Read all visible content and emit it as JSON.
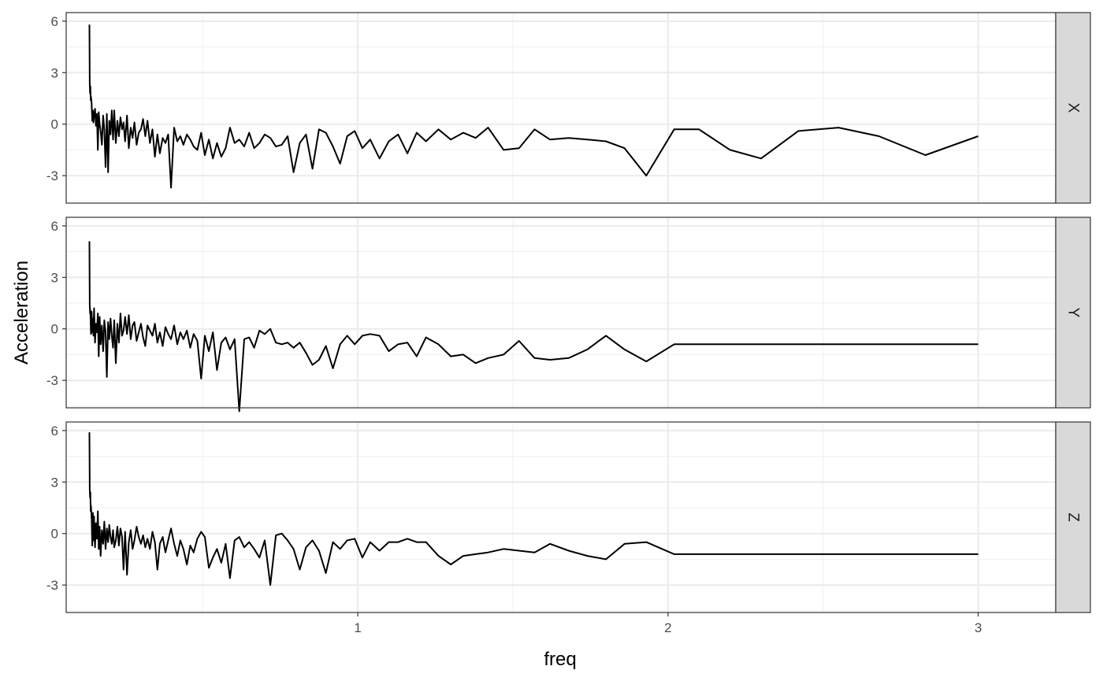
{
  "chart_data": {
    "type": "line",
    "layout": "faceted-rows",
    "xlabel": "freq",
    "ylabel": "Acceleration",
    "xlim": [
      0.06,
      3.25
    ],
    "ylim": [
      -4.6,
      6.5
    ],
    "x_ticks": [
      1,
      2,
      3
    ],
    "x_tick_labels": [
      "1",
      "2",
      "3"
    ],
    "y_ticks": [
      -3,
      0,
      3,
      6
    ],
    "y_tick_labels": [
      "-3",
      "0",
      "3",
      "6"
    ],
    "grid": true,
    "theme": "bw",
    "line_color": "#000000",
    "strip_color": "#d9d9d9",
    "panels": [
      {
        "strip": "X",
        "x": [
          0.135,
          0.136,
          0.137,
          0.138,
          0.139,
          0.14,
          0.142,
          0.144,
          0.146,
          0.148,
          0.15,
          0.153,
          0.156,
          0.159,
          0.162,
          0.165,
          0.168,
          0.171,
          0.175,
          0.179,
          0.183,
          0.187,
          0.191,
          0.195,
          0.199,
          0.203,
          0.207,
          0.211,
          0.215,
          0.22,
          0.225,
          0.23,
          0.235,
          0.24,
          0.245,
          0.25,
          0.256,
          0.262,
          0.268,
          0.274,
          0.28,
          0.287,
          0.294,
          0.301,
          0.308,
          0.315,
          0.322,
          0.33,
          0.338,
          0.346,
          0.354,
          0.362,
          0.371,
          0.38,
          0.389,
          0.398,
          0.408,
          0.418,
          0.428,
          0.438,
          0.449,
          0.46,
          0.471,
          0.483,
          0.495,
          0.507,
          0.52,
          0.533,
          0.546,
          0.56,
          0.574,
          0.588,
          0.603,
          0.618,
          0.634,
          0.65,
          0.666,
          0.683,
          0.7,
          0.718,
          0.736,
          0.755,
          0.774,
          0.793,
          0.813,
          0.833,
          0.854,
          0.875,
          0.897,
          0.92,
          0.943,
          0.966,
          0.99,
          1.015,
          1.04,
          1.07,
          1.1,
          1.13,
          1.16,
          1.19,
          1.22,
          1.26,
          1.3,
          1.34,
          1.38,
          1.42,
          1.47,
          1.52,
          1.57,
          1.62,
          1.68,
          1.74,
          1.8,
          1.86,
          1.93,
          2.02,
          2.1,
          2.2,
          2.3,
          2.42,
          2.55,
          2.68,
          2.83,
          3.0
        ],
        "y": [
          5.8,
          2.4,
          1.8,
          2.2,
          1.4,
          1.6,
          1.2,
          0.2,
          0.8,
          0.1,
          0.5,
          0.9,
          -0.1,
          0.6,
          -1.5,
          0.7,
          0.0,
          -0.4,
          -1.2,
          0.5,
          -0.3,
          -2.5,
          0.6,
          -2.8,
          0.2,
          -0.6,
          0.8,
          -0.9,
          0.8,
          -1.1,
          0.2,
          -0.7,
          0.4,
          -0.3,
          0.1,
          -1.0,
          0.5,
          -1.4,
          -0.2,
          -0.8,
          0.1,
          -1.2,
          -0.5,
          -0.3,
          0.3,
          -0.7,
          0.2,
          -1.1,
          -0.3,
          -1.9,
          -0.6,
          -1.7,
          -0.8,
          -1.1,
          -0.6,
          -3.7,
          -0.2,
          -1.0,
          -0.7,
          -1.2,
          -0.6,
          -0.9,
          -1.3,
          -1.5,
          -0.5,
          -1.8,
          -0.9,
          -2.0,
          -1.1,
          -1.9,
          -1.4,
          -0.2,
          -1.1,
          -0.9,
          -1.3,
          -0.5,
          -1.4,
          -1.1,
          -0.6,
          -0.8,
          -1.3,
          -1.2,
          -0.7,
          -2.8,
          -1.1,
          -0.6,
          -2.6,
          -0.3,
          -0.5,
          -1.3,
          -2.3,
          -0.7,
          -0.4,
          -1.4,
          -0.9,
          -2.0,
          -1.0,
          -0.6,
          -1.7,
          -0.5,
          -1.0,
          -0.3,
          -0.9,
          -0.5,
          -0.8,
          -0.2,
          -1.5,
          -1.4,
          -0.3,
          -0.9,
          -0.8,
          -0.9,
          -1.0,
          -1.4,
          -3.0,
          -0.3,
          -0.3,
          -1.5,
          -2.0,
          -0.4,
          -0.2,
          -0.7,
          -1.8,
          -0.7
        ]
      },
      {
        "strip": "Y",
        "x": [
          0.135,
          0.136,
          0.137,
          0.138,
          0.139,
          0.14,
          0.142,
          0.144,
          0.146,
          0.148,
          0.15,
          0.153,
          0.156,
          0.159,
          0.162,
          0.165,
          0.168,
          0.171,
          0.175,
          0.179,
          0.183,
          0.187,
          0.191,
          0.195,
          0.199,
          0.203,
          0.207,
          0.211,
          0.215,
          0.22,
          0.225,
          0.23,
          0.235,
          0.24,
          0.245,
          0.25,
          0.256,
          0.262,
          0.268,
          0.274,
          0.28,
          0.287,
          0.294,
          0.301,
          0.308,
          0.315,
          0.322,
          0.33,
          0.338,
          0.346,
          0.354,
          0.362,
          0.371,
          0.38,
          0.389,
          0.398,
          0.408,
          0.418,
          0.428,
          0.438,
          0.449,
          0.46,
          0.471,
          0.483,
          0.495,
          0.507,
          0.52,
          0.533,
          0.546,
          0.56,
          0.574,
          0.588,
          0.603,
          0.618,
          0.634,
          0.65,
          0.666,
          0.683,
          0.7,
          0.718,
          0.736,
          0.755,
          0.774,
          0.793,
          0.813,
          0.833,
          0.854,
          0.875,
          0.897,
          0.92,
          0.943,
          0.966,
          0.99,
          1.015,
          1.04,
          1.07,
          1.1,
          1.13,
          1.16,
          1.19,
          1.22,
          1.26,
          1.3,
          1.34,
          1.38,
          1.42,
          1.47,
          1.52,
          1.57,
          1.62,
          1.68,
          1.74,
          1.8,
          1.86,
          1.93,
          2.02,
          2.1,
          2.2,
          2.3,
          2.42,
          2.55,
          2.68,
          2.83,
          3.0
        ],
        "y": [
          5.1,
          1.4,
          0.9,
          1.1,
          0.3,
          -0.3,
          1.0,
          -0.2,
          0.6,
          -0.4,
          1.2,
          -0.8,
          0.3,
          -0.2,
          0.9,
          -1.6,
          0.7,
          -0.9,
          0.2,
          -1.3,
          0.5,
          -0.2,
          -2.8,
          0.4,
          -0.6,
          0.6,
          -0.4,
          -1.1,
          0.5,
          -2.0,
          0.3,
          -0.8,
          0.9,
          -0.4,
          -0.1,
          0.7,
          -0.3,
          0.8,
          -0.6,
          0.2,
          0.4,
          -0.7,
          -0.2,
          0.3,
          -0.5,
          -1.0,
          0.2,
          -0.1,
          -0.4,
          0.3,
          -0.8,
          -0.2,
          -1.0,
          0.1,
          -0.3,
          -0.6,
          0.2,
          -0.9,
          -0.2,
          -0.6,
          -0.1,
          -1.1,
          -0.3,
          -0.7,
          -2.9,
          -0.4,
          -1.3,
          -0.2,
          -2.4,
          -0.8,
          -0.5,
          -1.2,
          -0.6,
          -4.8,
          -0.6,
          -0.5,
          -1.1,
          -0.1,
          -0.3,
          0.0,
          -0.8,
          -0.9,
          -0.8,
          -1.1,
          -0.8,
          -1.4,
          -2.1,
          -1.8,
          -1.0,
          -2.3,
          -0.9,
          -0.4,
          -0.9,
          -0.4,
          -0.3,
          -0.4,
          -1.3,
          -0.9,
          -0.8,
          -1.6,
          -0.5,
          -0.9,
          -1.6,
          -1.5,
          -2.0,
          -1.7,
          -1.5,
          -0.7,
          -1.7,
          -1.8,
          -1.7,
          -1.2,
          -0.4,
          -1.2,
          -1.9,
          -0.9,
          -0.9,
          -0.9,
          -0.9,
          -0.9,
          -0.9,
          -0.9,
          -0.9,
          -0.9
        ]
      },
      {
        "strip": "Z",
        "x": [
          0.135,
          0.136,
          0.137,
          0.138,
          0.139,
          0.14,
          0.142,
          0.144,
          0.146,
          0.148,
          0.15,
          0.153,
          0.156,
          0.159,
          0.162,
          0.165,
          0.168,
          0.171,
          0.175,
          0.179,
          0.183,
          0.187,
          0.191,
          0.195,
          0.199,
          0.203,
          0.207,
          0.211,
          0.215,
          0.22,
          0.225,
          0.23,
          0.235,
          0.24,
          0.245,
          0.25,
          0.256,
          0.262,
          0.268,
          0.274,
          0.28,
          0.287,
          0.294,
          0.301,
          0.308,
          0.315,
          0.322,
          0.33,
          0.338,
          0.346,
          0.354,
          0.362,
          0.371,
          0.38,
          0.389,
          0.398,
          0.408,
          0.418,
          0.428,
          0.438,
          0.449,
          0.46,
          0.471,
          0.483,
          0.495,
          0.507,
          0.52,
          0.533,
          0.546,
          0.56,
          0.574,
          0.588,
          0.603,
          0.618,
          0.634,
          0.65,
          0.666,
          0.683,
          0.7,
          0.718,
          0.736,
          0.755,
          0.774,
          0.793,
          0.813,
          0.833,
          0.854,
          0.875,
          0.897,
          0.92,
          0.943,
          0.966,
          0.99,
          1.015,
          1.04,
          1.07,
          1.1,
          1.13,
          1.16,
          1.19,
          1.22,
          1.26,
          1.3,
          1.34,
          1.38,
          1.42,
          1.47,
          1.52,
          1.57,
          1.62,
          1.68,
          1.74,
          1.8,
          1.86,
          1.93,
          2.02,
          2.1,
          2.2,
          2.3,
          2.42,
          2.55,
          2.68,
          2.83,
          3.0
        ],
        "y": [
          5.9,
          2.6,
          2.1,
          2.4,
          1.3,
          1.6,
          0.9,
          -0.7,
          1.2,
          -0.4,
          1.0,
          -0.8,
          0.6,
          -0.3,
          1.3,
          -0.9,
          0.4,
          -1.3,
          0.2,
          -0.6,
          0.7,
          -0.9,
          0.3,
          -0.5,
          0.5,
          -0.2,
          -0.6,
          0.2,
          -0.8,
          -0.4,
          0.4,
          -0.7,
          0.3,
          -0.2,
          -2.1,
          0.1,
          -2.4,
          -0.5,
          0.2,
          -0.9,
          -0.4,
          0.4,
          -0.2,
          -0.6,
          -0.1,
          -0.8,
          -0.3,
          -0.9,
          0.1,
          -0.5,
          -2.1,
          -0.6,
          -0.2,
          -1.1,
          -0.4,
          0.3,
          -0.6,
          -1.3,
          -0.4,
          -0.9,
          -1.8,
          -0.7,
          -1.1,
          -0.3,
          0.1,
          -0.2,
          -2.0,
          -1.4,
          -0.9,
          -1.7,
          -0.6,
          -2.6,
          -0.4,
          -0.2,
          -0.8,
          -0.5,
          -0.9,
          -1.4,
          -0.4,
          -3.0,
          -0.1,
          0.0,
          -0.4,
          -0.9,
          -2.1,
          -0.8,
          -0.4,
          -1.0,
          -2.3,
          -0.5,
          -0.9,
          -0.4,
          -0.3,
          -1.4,
          -0.5,
          -1.0,
          -0.5,
          -0.5,
          -0.3,
          -0.5,
          -0.5,
          -1.3,
          -1.8,
          -1.3,
          -1.2,
          -1.1,
          -0.9,
          -1.0,
          -1.1,
          -0.6,
          -1.0,
          -1.3,
          -1.5,
          -0.6,
          -0.5,
          -1.2,
          -1.2,
          -1.2,
          -1.2,
          -1.2,
          -1.2,
          -1.2,
          -1.2,
          -1.2
        ]
      }
    ]
  }
}
